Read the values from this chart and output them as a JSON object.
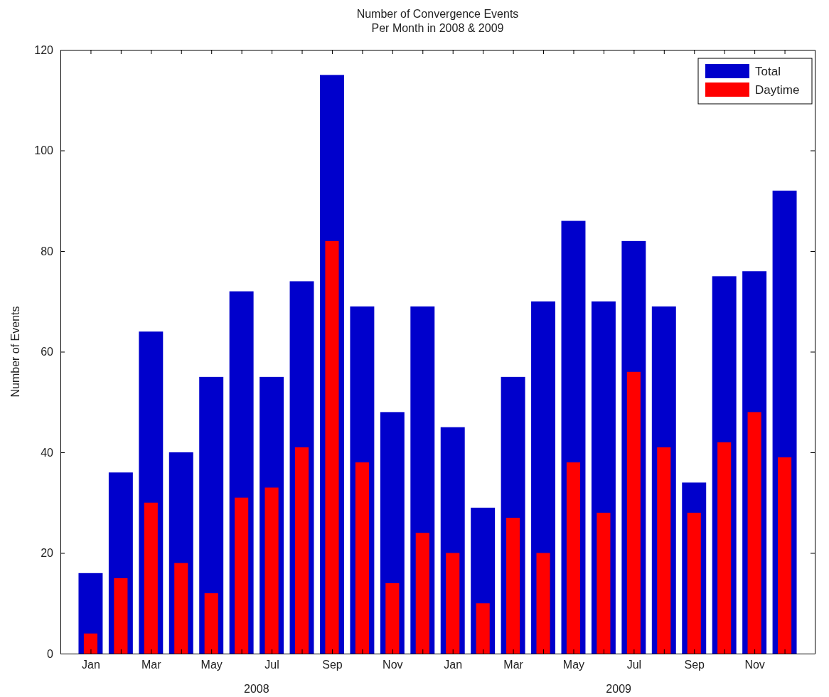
{
  "chart_data": {
    "type": "bar",
    "title": "Number of Convergence Events\nPer Month in 2008 & 2009",
    "ylabel": "Number of Events",
    "categories": [
      "Jan",
      null,
      "Mar",
      null,
      "May",
      null,
      "Jul",
      null,
      "Sep",
      null,
      "Nov",
      null,
      "Jan",
      null,
      "Mar",
      null,
      "May",
      null,
      "Jul",
      null,
      "Sep",
      null,
      "Nov",
      null
    ],
    "series": [
      {
        "name": "Total",
        "color": "#0000cc",
        "values": [
          16,
          36,
          64,
          40,
          55,
          72,
          55,
          74,
          115,
          69,
          48,
          69,
          45,
          29,
          55,
          70,
          86,
          70,
          82,
          69,
          34,
          75,
          76,
          92
        ]
      },
      {
        "name": "Daytime",
        "color": "#ff0000",
        "values": [
          4,
          15,
          30,
          18,
          12,
          31,
          33,
          41,
          82,
          38,
          14,
          24,
          20,
          10,
          27,
          20,
          38,
          28,
          56,
          41,
          28,
          42,
          48,
          39
        ]
      }
    ],
    "annotations": [
      "2008",
      "2009"
    ],
    "ylim": [
      0,
      120
    ],
    "yticks": [
      0,
      20,
      40,
      60,
      80,
      100,
      120
    ],
    "grid": false,
    "legend": "top right"
  }
}
